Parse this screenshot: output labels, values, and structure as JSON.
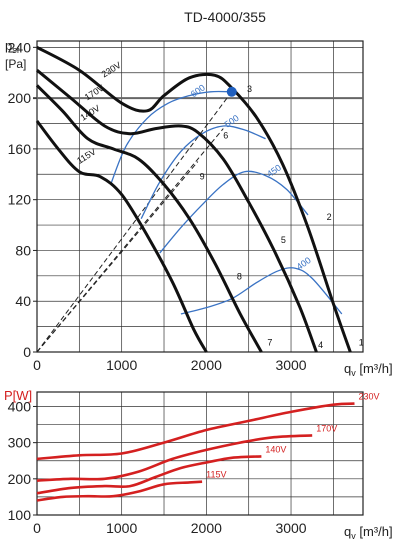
{
  "chart_data": [
    {
      "type": "line",
      "title": "TD-4000/355",
      "ylabel_main": "p",
      "ylabel_sub": "sf",
      "ylabel_unit": "[Pa]",
      "xlabel_main": "q",
      "xlabel_sub": "v",
      "xlabel_unit": " [m³/h]",
      "xlim": [
        0,
        3850
      ],
      "ylim": [
        0,
        245
      ],
      "xticks": [
        0,
        1000,
        2000,
        3000
      ],
      "yticks": [
        0,
        40,
        80,
        120,
        160,
        200,
        240
      ],
      "grid": true,
      "reference_line": 200,
      "operating_point": {
        "x": 2300,
        "y": 205,
        "color": "#1f5fbf"
      },
      "series": [
        {
          "name": "230V",
          "label": "1",
          "style": "fan",
          "x": [
            0,
            500,
            1000,
            1300,
            1500,
            1800,
            2100,
            2300,
            2600,
            2900,
            3200,
            3500,
            3700
          ],
          "y": [
            240,
            222,
            196,
            190,
            202,
            216,
            218,
            208,
            184,
            148,
            98,
            38,
            0
          ]
        },
        {
          "name": "170V",
          "label": "4",
          "style": "fan",
          "x": [
            0,
            400,
            800,
            1100,
            1400,
            1700,
            1900,
            2200,
            2500,
            2800,
            3100,
            3300
          ],
          "y": [
            222,
            200,
            178,
            172,
            176,
            178,
            173,
            152,
            118,
            80,
            36,
            0
          ]
        },
        {
          "name": "140V",
          "label": "7",
          "style": "fan",
          "x": [
            0,
            300,
            600,
            900,
            1200,
            1500,
            1800,
            2100,
            2400,
            2650
          ],
          "y": [
            210,
            190,
            168,
            160,
            152,
            132,
            105,
            70,
            30,
            0
          ]
        },
        {
          "name": "115V",
          "label": "",
          "style": "fan",
          "x": [
            0,
            250,
            500,
            750,
            1000,
            1300,
            1600,
            1850,
            2000
          ],
          "y": [
            182,
            160,
            142,
            138,
            124,
            92,
            55,
            18,
            0
          ]
        },
        {
          "name": "600",
          "label": "",
          "style": "rpm",
          "x": [
            870,
            1050,
            1300,
            1550,
            1800,
            2050,
            2300
          ],
          "y": [
            132,
            162,
            184,
            196,
            202,
            205,
            205
          ]
        },
        {
          "name": "500",
          "label": "",
          "style": "rpm",
          "x": [
            1230,
            1450,
            1700,
            1950,
            2200,
            2450,
            2700
          ],
          "y": [
            105,
            134,
            158,
            172,
            178,
            175,
            168
          ]
        },
        {
          "name": "450",
          "label": "",
          "style": "rpm",
          "x": [
            1450,
            1700,
            1950,
            2200,
            2450,
            2700,
            2950,
            3200
          ],
          "y": [
            78,
            98,
            116,
            132,
            142,
            139,
            128,
            108
          ]
        },
        {
          "name": "400",
          "label": "",
          "style": "rpm",
          "x": [
            1700,
            2000,
            2300,
            2600,
            2850,
            3050,
            3250,
            3600
          ],
          "y": [
            30,
            35,
            42,
            55,
            64,
            66,
            58,
            30
          ]
        }
      ],
      "resistance_lines": [
        {
          "label": "3",
          "x": [
            0,
            2300
          ],
          "y": [
            0,
            205
          ]
        },
        {
          "label": "6",
          "x": [
            0,
            2200
          ],
          "y": [
            0,
            176
          ]
        },
        {
          "label": "9",
          "x": [
            0,
            1900
          ],
          "y": [
            0,
            150
          ]
        },
        {
          "label": "2",
          "x": [
            3350
          ],
          "y": [
            100
          ]
        },
        {
          "label": "5",
          "x": [
            2850
          ],
          "y": [
            90
          ]
        },
        {
          "label": "8",
          "x": [
            2350
          ],
          "y": [
            57
          ]
        }
      ],
      "number_labels": [
        {
          "text": "1",
          "x": 3800,
          "y": 5
        },
        {
          "text": "4",
          "x": 3320,
          "y": 3
        },
        {
          "text": "7",
          "x": 2720,
          "y": 5
        },
        {
          "text": "2",
          "x": 3420,
          "y": 104
        },
        {
          "text": "3",
          "x": 2480,
          "y": 205
        },
        {
          "text": "5",
          "x": 2880,
          "y": 86
        },
        {
          "text": "6",
          "x": 2200,
          "y": 168
        },
        {
          "text": "8",
          "x": 2360,
          "y": 57
        },
        {
          "text": "9",
          "x": 1920,
          "y": 136
        }
      ]
    },
    {
      "type": "line",
      "title": "",
      "ylabel_main": "P[W]",
      "xlabel_main": "q",
      "xlabel_sub": "v",
      "xlabel_unit": " [m³/h]",
      "xlim": [
        0,
        3850
      ],
      "ylim": [
        100,
        440
      ],
      "xticks": [
        0,
        1000,
        2000,
        3000
      ],
      "yticks": [
        100,
        200,
        300,
        400
      ],
      "grid": true,
      "series": [
        {
          "name": "230V",
          "x": [
            0,
            500,
            1000,
            1500,
            2000,
            2500,
            3000,
            3500,
            3750
          ],
          "y": [
            255,
            265,
            270,
            300,
            335,
            360,
            385,
            405,
            408
          ]
        },
        {
          "name": "170V",
          "x": [
            0,
            400,
            800,
            1200,
            1600,
            2000,
            2400,
            2800,
            3250
          ],
          "y": [
            195,
            200,
            200,
            220,
            255,
            280,
            300,
            315,
            320
          ]
        },
        {
          "name": "140V",
          "x": [
            0,
            400,
            800,
            1100,
            1400,
            1700,
            2000,
            2300,
            2650
          ],
          "y": [
            160,
            175,
            180,
            180,
            205,
            230,
            245,
            258,
            262
          ]
        },
        {
          "name": "115V",
          "x": [
            0,
            300,
            600,
            900,
            1200,
            1500,
            1800,
            1950
          ],
          "y": [
            140,
            150,
            152,
            152,
            165,
            185,
            190,
            192
          ]
        }
      ]
    }
  ]
}
